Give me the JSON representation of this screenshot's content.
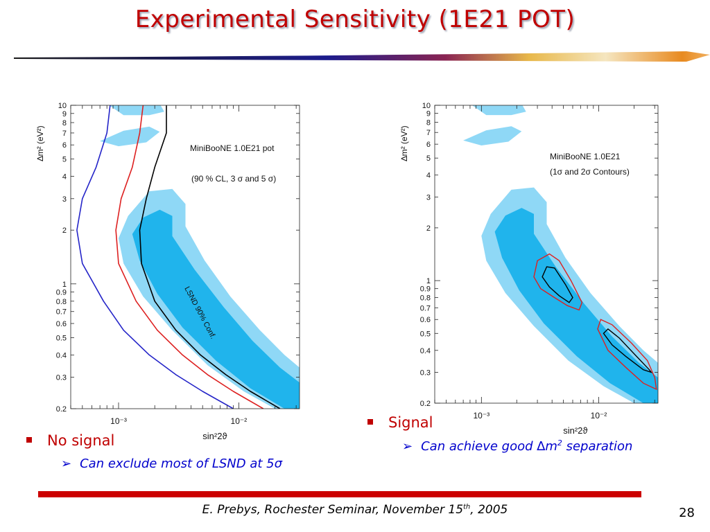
{
  "slide": {
    "title": "Experimental Sensitivity (1E21 POT)",
    "footer_main": "E. Prebys, Rochester Seminar, November 15",
    "footer_sup": "th",
    "footer_tail": ", 2005",
    "page_number": "28",
    "accent_color": "#c00000",
    "text_blue": "#0000cc"
  },
  "bullets": {
    "left": {
      "label": "No signal",
      "sub": "Can exclude most of LSND at 5σ"
    },
    "right": {
      "label": "Signal",
      "sub_pre": "Can achieve good ∆m",
      "sub_sup": "2",
      "sub_post": " separation"
    }
  },
  "chart_data": [
    {
      "type": "line",
      "axis_scale": "log-log",
      "xlabel": "sin²2ϑ",
      "ylabel": "∆m² (eV²)",
      "xlim": [
        0.0004,
        0.032
      ],
      "ylim": [
        0.2,
        10
      ],
      "x_ticks": [
        {
          "v": 0.001,
          "label": "10⁻³"
        },
        {
          "v": 0.01,
          "label": "10⁻²"
        }
      ],
      "y_ticks": [
        "0.2",
        "0.3",
        "0.4",
        "0.5",
        "0.6",
        "0.7",
        "0.8",
        "0.9",
        "1",
        "2",
        "3",
        "4",
        "5",
        "6",
        "7",
        "8",
        "9",
        "10"
      ],
      "annotations": [
        "MiniBooNE 1.0E21 pot",
        "(90 % CL, 3 σ and 5 σ)",
        "LSND 90% Conf."
      ],
      "colors": {
        "band_outer": "#8fd8f6",
        "band_inner": "#20b4ec",
        "c90": "#2424c8",
        "c3s": "#dd2020",
        "c5s": "#000000"
      },
      "series": [
        {
          "color": "#2424c8",
          "points": [
            [
              0.00085,
              10
            ],
            [
              0.0008,
              7
            ],
            [
              0.00065,
              4.5
            ],
            [
              0.0005,
              3
            ],
            [
              0.00045,
              2
            ],
            [
              0.0005,
              1.3
            ],
            [
              0.00075,
              0.8
            ],
            [
              0.0011,
              0.55
            ],
            [
              0.0018,
              0.4
            ],
            [
              0.003,
              0.31
            ],
            [
              0.005,
              0.25
            ],
            [
              0.009,
              0.2
            ]
          ]
        },
        {
          "color": "#dd2020",
          "points": [
            [
              0.0016,
              10
            ],
            [
              0.0015,
              7
            ],
            [
              0.0013,
              4.5
            ],
            [
              0.00105,
              3
            ],
            [
              0.00095,
              2
            ],
            [
              0.001,
              1.3
            ],
            [
              0.0014,
              0.8
            ],
            [
              0.0021,
              0.55
            ],
            [
              0.0034,
              0.4
            ],
            [
              0.0055,
              0.31
            ],
            [
              0.009,
              0.25
            ],
            [
              0.016,
              0.2
            ]
          ]
        },
        {
          "color": "#000000",
          "points": [
            [
              0.0025,
              10
            ],
            [
              0.0025,
              7
            ],
            [
              0.002,
              4.5
            ],
            [
              0.0017,
              3
            ],
            [
              0.0015,
              2
            ],
            [
              0.00155,
              1.3
            ],
            [
              0.002,
              0.8
            ],
            [
              0.003,
              0.55
            ],
            [
              0.0048,
              0.4
            ],
            [
              0.0078,
              0.31
            ],
            [
              0.0125,
              0.25
            ],
            [
              0.022,
              0.2
            ]
          ]
        }
      ],
      "lsnd_region": {
        "outer": [
          [
            0.0012,
            2.4
          ],
          [
            0.0018,
            3.3
          ],
          [
            0.0028,
            3.4
          ],
          [
            0.0036,
            2.8
          ],
          [
            0.0036,
            2.1
          ],
          [
            0.0052,
            1.35
          ],
          [
            0.0085,
            0.85
          ],
          [
            0.015,
            0.55
          ],
          [
            0.024,
            0.4
          ],
          [
            0.032,
            0.34
          ],
          [
            0.032,
            0.2
          ],
          [
            0.02,
            0.2
          ],
          [
            0.011,
            0.25
          ],
          [
            0.0055,
            0.35
          ],
          [
            0.0028,
            0.55
          ],
          [
            0.0016,
            0.85
          ],
          [
            0.0011,
            1.3
          ],
          [
            0.001,
            1.8
          ]
        ],
        "inner": [
          [
            0.0016,
            2.35
          ],
          [
            0.0022,
            2.6
          ],
          [
            0.0028,
            2.4
          ],
          [
            0.0028,
            1.85
          ],
          [
            0.0043,
            1.2
          ],
          [
            0.0075,
            0.74
          ],
          [
            0.013,
            0.48
          ],
          [
            0.022,
            0.34
          ],
          [
            0.032,
            0.28
          ],
          [
            0.032,
            0.2
          ],
          [
            0.024,
            0.2
          ],
          [
            0.0125,
            0.26
          ],
          [
            0.0065,
            0.37
          ],
          [
            0.0034,
            0.57
          ],
          [
            0.0021,
            0.88
          ],
          [
            0.0015,
            1.35
          ],
          [
            0.0013,
            1.9
          ]
        ],
        "islands": [
          [
            [
              0.0008,
              10.2
            ],
            [
              0.0011,
              8.8
            ],
            [
              0.0018,
              8.8
            ],
            [
              0.0024,
              9.2
            ],
            [
              0.0022,
              10.2
            ]
          ],
          [
            [
              0.0013,
              10.2
            ],
            [
              0.0015,
              9.4
            ],
            [
              0.0019,
              9.4
            ],
            [
              0.0019,
              10.2
            ]
          ],
          [
            [
              0.0007,
              6.3
            ],
            [
              0.0011,
              7.2
            ],
            [
              0.0018,
              7.6
            ],
            [
              0.0022,
              7.1
            ],
            [
              0.0017,
              6.2
            ],
            [
              0.001,
              5.9
            ]
          ]
        ]
      }
    },
    {
      "type": "line",
      "axis_scale": "log-log",
      "xlabel": "sin²2ϑ",
      "ylabel": "∆m² (eV²)",
      "xlim": [
        0.0004,
        0.032
      ],
      "ylim": [
        0.2,
        10
      ],
      "x_ticks": [
        {
          "v": 0.001,
          "label": "10⁻³"
        },
        {
          "v": 0.01,
          "label": "10⁻²"
        }
      ],
      "y_ticks": [
        "0.2",
        "0.3",
        "0.4",
        "0.5",
        "0.6",
        "0.7",
        "0.8",
        "0.9",
        "1",
        "2",
        "3",
        "4",
        "5",
        "6",
        "7",
        "8",
        "9",
        "10"
      ],
      "annotations": [
        "MiniBooNE 1.0E21",
        "(1σ and 2σ Contours)"
      ],
      "contours": [
        {
          "level": "1σ",
          "color": "#000000",
          "points": [
            [
              0.0033,
              1.05
            ],
            [
              0.0036,
              1.2
            ],
            [
              0.0042,
              1.18
            ],
            [
              0.0052,
              0.95
            ],
            [
              0.006,
              0.8
            ],
            [
              0.0056,
              0.75
            ],
            [
              0.0046,
              0.82
            ],
            [
              0.0038,
              0.92
            ]
          ]
        },
        {
          "level": "2σ",
          "color": "#dd2020",
          "points": [
            [
              0.0028,
              1.05
            ],
            [
              0.003,
              1.3
            ],
            [
              0.0038,
              1.42
            ],
            [
              0.0046,
              1.3
            ],
            [
              0.0058,
              1.0
            ],
            [
              0.0072,
              0.75
            ],
            [
              0.0068,
              0.68
            ],
            [
              0.0054,
              0.72
            ],
            [
              0.0042,
              0.8
            ],
            [
              0.0032,
              0.9
            ]
          ]
        },
        {
          "level": "1σ",
          "color": "#000000",
          "points": [
            [
              0.011,
              0.5
            ],
            [
              0.012,
              0.53
            ],
            [
              0.015,
              0.47
            ],
            [
              0.021,
              0.37
            ],
            [
              0.027,
              0.31
            ],
            [
              0.028,
              0.3
            ],
            [
              0.024,
              0.31
            ],
            [
              0.017,
              0.37
            ],
            [
              0.013,
              0.43
            ]
          ]
        },
        {
          "level": "2σ",
          "color": "#dd2020",
          "points": [
            [
              0.0098,
              0.53
            ],
            [
              0.0104,
              0.6
            ],
            [
              0.013,
              0.56
            ],
            [
              0.019,
              0.44
            ],
            [
              0.026,
              0.35
            ],
            [
              0.03,
              0.28
            ],
            [
              0.031,
              0.24
            ],
            [
              0.024,
              0.26
            ],
            [
              0.017,
              0.32
            ],
            [
              0.012,
              0.4
            ]
          ]
        }
      ]
    }
  ]
}
